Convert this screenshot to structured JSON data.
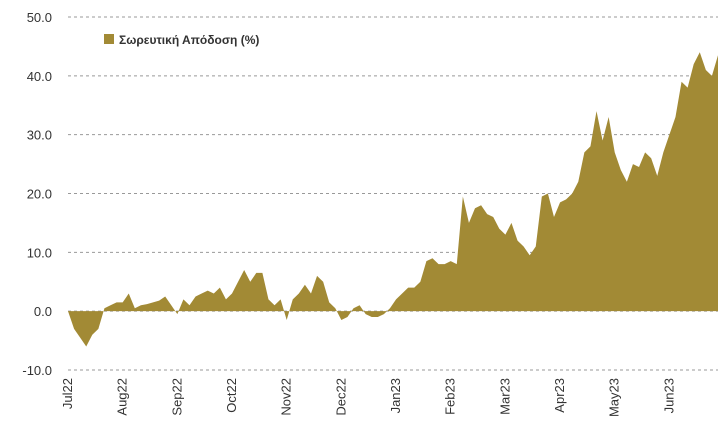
{
  "chart_data": {
    "type": "area",
    "categories": [
      "Jul22",
      null,
      null,
      null,
      null,
      null,
      null,
      null,
      null,
      "Aug22",
      null,
      null,
      null,
      null,
      null,
      null,
      null,
      null,
      "Sep22",
      null,
      null,
      null,
      null,
      null,
      null,
      null,
      null,
      "Oct22",
      null,
      null,
      null,
      null,
      null,
      null,
      null,
      null,
      "Nov22",
      null,
      null,
      null,
      null,
      null,
      null,
      null,
      null,
      "Dec22",
      null,
      null,
      null,
      null,
      null,
      null,
      null,
      null,
      "Jan23",
      null,
      null,
      null,
      null,
      null,
      null,
      null,
      null,
      "Feb23",
      null,
      null,
      null,
      null,
      null,
      null,
      null,
      null,
      "Mar23",
      null,
      null,
      null,
      null,
      null,
      null,
      null,
      null,
      "Apr23",
      null,
      null,
      null,
      null,
      null,
      null,
      null,
      null,
      "May23",
      null,
      null,
      null,
      null,
      null,
      null,
      null,
      null,
      "Jun23",
      null,
      null,
      null,
      null,
      null,
      null,
      null,
      null
    ],
    "series": [
      {
        "name": "Σωρευτική Απόδοση (%)",
        "color": "#a28a35",
        "values": [
          0,
          -3,
          -4.5,
          -6,
          -4,
          -3,
          0.5,
          1,
          1.5,
          1.5,
          3,
          0.5,
          1,
          1.2,
          1.5,
          1.8,
          2.5,
          1,
          -0.5,
          2,
          1,
          2.5,
          3,
          3.5,
          3,
          4,
          2,
          3,
          5,
          7,
          5,
          6.5,
          6.5,
          2,
          1,
          2,
          -1.5,
          2,
          3,
          4.5,
          3,
          6,
          5,
          1.5,
          0.5,
          -1.5,
          -1,
          0.5,
          1,
          -0.5,
          -1,
          -1,
          -0.5,
          0.5,
          2,
          3,
          4,
          4,
          5,
          8.5,
          9,
          8,
          8,
          8.5,
          8,
          19.5,
          15,
          17.5,
          18,
          16.5,
          16,
          14,
          13,
          15,
          12,
          11,
          9.5,
          11,
          19.5,
          20,
          16,
          18.5,
          19,
          20,
          22,
          27,
          28,
          34,
          29,
          33,
          27,
          24,
          22,
          25,
          24.5,
          27,
          26,
          23,
          27,
          30,
          33,
          39,
          38,
          42,
          44,
          41,
          40,
          43.5
        ]
      }
    ],
    "ylim": [
      -10,
      50
    ],
    "yticks": [
      {
        "value": -10,
        "label": "-10.0"
      },
      {
        "value": 0,
        "label": "0.0"
      },
      {
        "value": 10,
        "label": "10.0"
      },
      {
        "value": 20,
        "label": "20.0"
      },
      {
        "value": 30,
        "label": "30.0"
      },
      {
        "value": 40,
        "label": "40.0"
      },
      {
        "value": 50,
        "label": "50.0"
      }
    ],
    "grid": true,
    "legend": "upper left"
  }
}
